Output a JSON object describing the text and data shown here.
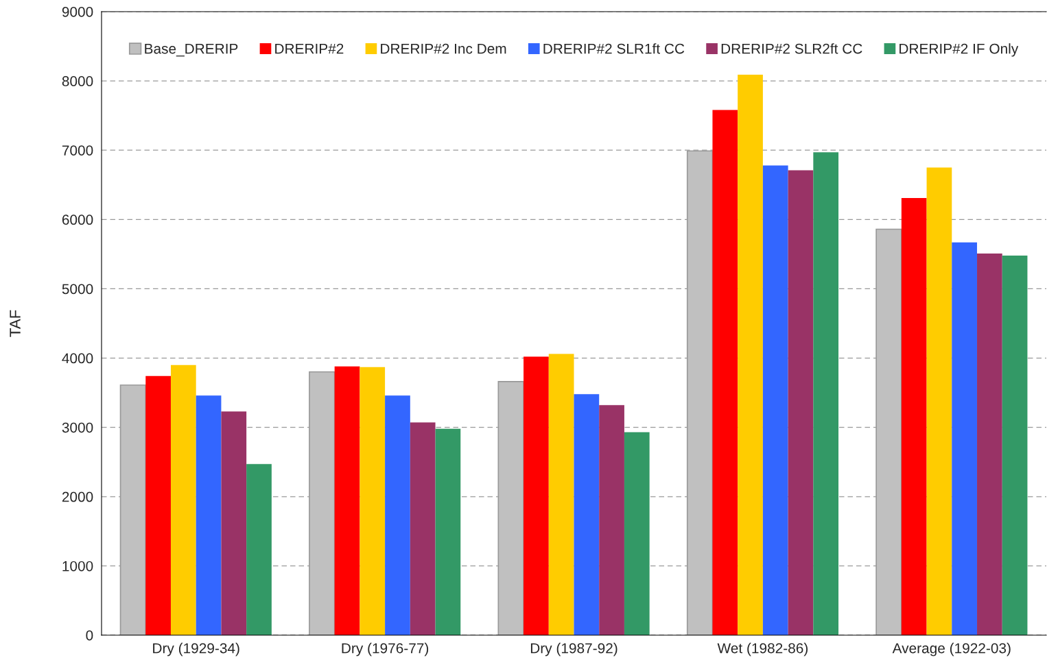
{
  "chart_data": {
    "type": "bar",
    "ylabel": "TAF",
    "categories": [
      "Dry (1929-34)",
      "Dry (1976-77)",
      "Dry (1987-92)",
      "Wet (1982-86)",
      "Average (1922-03)"
    ],
    "series": [
      {
        "name": "Base_DRERIP",
        "color": "#c0c0c0",
        "values": [
          3610,
          3800,
          3660,
          6990,
          5860
        ]
      },
      {
        "name": "DRERIP#2",
        "color": "#ff0000",
        "values": [
          3740,
          3880,
          4020,
          7580,
          6310
        ]
      },
      {
        "name": "DRERIP#2 Inc Dem",
        "color": "#ffcc00",
        "values": [
          3900,
          3870,
          4060,
          8090,
          6750
        ]
      },
      {
        "name": "DRERIP#2 SLR1ft CC",
        "color": "#3366ff",
        "values": [
          3460,
          3460,
          3480,
          6780,
          5670
        ]
      },
      {
        "name": "DRERIP#2 SLR2ft CC",
        "color": "#993366",
        "values": [
          3230,
          3070,
          3320,
          6710,
          5510
        ]
      },
      {
        "name": "DRERIP#2 IF Only",
        "color": "#339966",
        "values": [
          2470,
          2980,
          2930,
          6970,
          5480
        ]
      }
    ],
    "ylim": [
      0,
      9000
    ],
    "yticks": [
      0,
      1000,
      2000,
      3000,
      4000,
      5000,
      6000,
      7000,
      8000,
      9000
    ],
    "grid": "y",
    "legend": "top"
  }
}
